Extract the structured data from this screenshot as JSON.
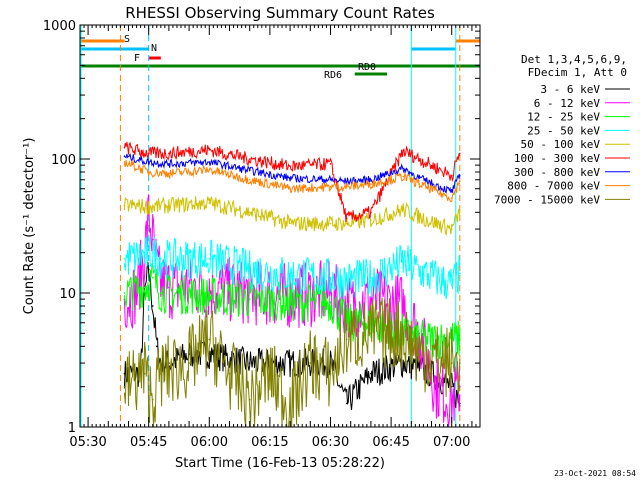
{
  "chart_data": {
    "type": "line",
    "title": "RHESSI Observing Summary Count Rates",
    "xlabel": "Start Time (16-Feb-13 05:28:22)",
    "ylabel": "Count Rate (s⁻¹ detector⁻¹)",
    "xlim": [
      "05:28",
      "07:07"
    ],
    "ylim": [
      1,
      1000
    ],
    "yscale": "log",
    "x_ticks": [
      "05:30",
      "05:45",
      "06:00",
      "06:15",
      "06:30",
      "06:45",
      "07:00"
    ],
    "y_ticks": [
      "1",
      "10",
      "100",
      "1000"
    ],
    "legend": {
      "placement": "right",
      "header": [
        "Det 1,3,4,5,6,9,",
        "FDecim 1, Att 0"
      ],
      "entries": [
        {
          "label": "3 - 6 keV",
          "color": "#000000"
        },
        {
          "label": "6 - 12 keV",
          "color": "#ff00ff"
        },
        {
          "label": "12 - 25 keV",
          "color": "#00ff00"
        },
        {
          "label": "25 - 50 keV",
          "color": "#00ffff"
        },
        {
          "label": "50 - 100 keV",
          "color": "#d0c000"
        },
        {
          "label": "100 - 300 keV",
          "color": "#ff0000"
        },
        {
          "label": "300 - 800 keV",
          "color": "#0000ff"
        },
        {
          "label": "800 - 7000 keV",
          "color": "#ff8000"
        },
        {
          "label": "7000 - 15000 keV",
          "color": "#808000"
        }
      ]
    },
    "flags": [
      {
        "label": "S",
        "color": "#ff8000"
      },
      {
        "label": "N",
        "color": "#00c0ff"
      },
      {
        "label": "F",
        "color": "#ff0000"
      },
      {
        "label": "RD0",
        "color": "#008000"
      },
      {
        "label": "RD6",
        "color": "#008000"
      }
    ],
    "series": [
      {
        "name": "3 - 6 keV",
        "color": "#000000",
        "x": [
          "05:39",
          "05:43",
          "05:44",
          "05:45",
          "05:46",
          "05:47",
          "05:48",
          "05:50",
          "05:55",
          "06:00",
          "06:10",
          "06:20",
          "06:30",
          "06:34",
          "06:40",
          "06:48",
          "06:55",
          "07:00",
          "07:02"
        ],
        "y": [
          2.5,
          2.5,
          10,
          15,
          8,
          4,
          3,
          3,
          3.5,
          3.5,
          3,
          3,
          3,
          1.5,
          2.5,
          3,
          2.5,
          2,
          1.5
        ]
      },
      {
        "name": "6 - 12 keV",
        "color": "#ff00ff",
        "x": [
          "05:39",
          "05:42",
          "05:44",
          "05:45",
          "05:46",
          "05:47",
          "05:48",
          "05:50",
          "06:00",
          "06:10",
          "06:20",
          "06:30",
          "06:34",
          "06:40",
          "06:48",
          "06:52",
          "06:56",
          "07:00",
          "07:02"
        ],
        "y": [
          9,
          10,
          20,
          38,
          25,
          15,
          12,
          11,
          11,
          10,
          9.5,
          10,
          8,
          9,
          8,
          5,
          2,
          1.6,
          2
        ]
      },
      {
        "name": "12 - 25 keV",
        "color": "#00ff00",
        "x": [
          "05:39",
          "05:44",
          "05:46",
          "05:48",
          "06:00",
          "06:10",
          "06:20",
          "06:30",
          "06:34",
          "06:40",
          "06:48",
          "06:52",
          "07:00",
          "07:02"
        ],
        "y": [
          10,
          11,
          13,
          10,
          9.5,
          9,
          8.5,
          8.5,
          6,
          6,
          5,
          4.5,
          4.5,
          4.5
        ]
      },
      {
        "name": "25 - 50 keV",
        "color": "#00ffff",
        "x": [
          "05:39",
          "05:44",
          "05:46",
          "05:48",
          "06:00",
          "06:10",
          "06:20",
          "06:30",
          "06:34",
          "06:40",
          "06:48",
          "06:52",
          "07:00",
          "07:02"
        ],
        "y": [
          18,
          19,
          20,
          18,
          18,
          15,
          13.5,
          13,
          12.5,
          13,
          17,
          14.5,
          11.5,
          14
        ]
      },
      {
        "name": "50 - 100 keV",
        "color": "#d0c000",
        "x": [
          "05:39",
          "05:45",
          "05:50",
          "06:00",
          "06:10",
          "06:20",
          "06:30",
          "06:34",
          "06:40",
          "06:48",
          "06:52",
          "07:00",
          "07:02"
        ],
        "y": [
          45,
          44,
          45,
          47,
          40,
          33,
          33,
          33,
          35,
          42,
          37,
          30,
          40
        ]
      },
      {
        "name": "100 - 300 keV",
        "color": "#ff0000",
        "x": [
          "05:39",
          "05:45",
          "05:50",
          "06:00",
          "06:10",
          "06:20",
          "06:30",
          "06:34",
          "06:40",
          "06:48",
          "06:52",
          "07:00",
          "07:02"
        ],
        "y": [
          122,
          110,
          110,
          117,
          100,
          88,
          92,
          36,
          40,
          115,
          100,
          75,
          110
        ]
      },
      {
        "name": "300 - 800 keV",
        "color": "#0000ff",
        "x": [
          "05:39",
          "05:45",
          "05:50",
          "06:00",
          "06:10",
          "06:20",
          "06:30",
          "06:34",
          "06:40",
          "06:48",
          "06:52",
          "07:00",
          "07:02"
        ],
        "y": [
          105,
          95,
          92,
          95,
          82,
          72,
          70,
          68,
          70,
          85,
          72,
          57,
          75
        ]
      },
      {
        "name": "800 - 7000 keV",
        "color": "#ff8000",
        "x": [
          "05:39",
          "05:45",
          "05:50",
          "06:00",
          "06:10",
          "06:20",
          "06:30",
          "06:34",
          "06:40",
          "06:48",
          "06:52",
          "07:00",
          "07:02"
        ],
        "y": [
          95,
          80,
          78,
          83,
          70,
          60,
          62,
          62,
          65,
          74,
          65,
          51,
          68
        ]
      },
      {
        "name": "7000 - 15000 keV",
        "color": "#808000",
        "x": [
          "05:39",
          "05:44",
          "05:46",
          "05:48",
          "05:55",
          "06:00",
          "06:05",
          "06:10",
          "06:15",
          "06:20",
          "06:25",
          "06:30",
          "06:34",
          "06:40",
          "06:48",
          "06:52",
          "07:00",
          "07:02"
        ],
        "y": [
          2,
          2.5,
          1.6,
          2.5,
          3,
          4.5,
          2.5,
          1.6,
          2.5,
          1.4,
          3,
          2.5,
          4.5,
          5,
          5,
          3.5,
          3,
          3
        ]
      }
    ]
  },
  "footer": {
    "timestamp": "23-Oct-2021 08:54"
  }
}
